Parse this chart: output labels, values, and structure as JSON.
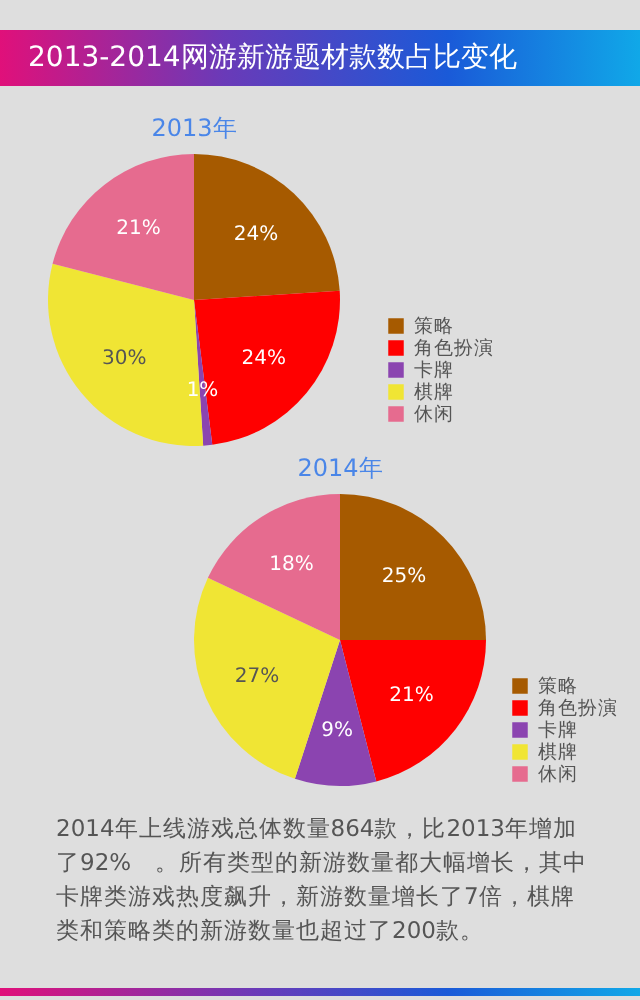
{
  "chart_data": [
    {
      "type": "pie",
      "title": "2013-2014网游新游题材款数占比变化",
      "subtitle": "2013年",
      "categories": [
        "策略",
        "角色扮演",
        "卡牌",
        "棋牌",
        "休闲"
      ],
      "values": [
        24,
        24,
        1,
        30,
        21
      ],
      "value_labels": [
        "24%",
        "24%",
        "1%",
        "30%",
        "21%"
      ],
      "colors": [
        "#a65a00",
        "#ff0000",
        "#8b44b0",
        "#f0e534",
        "#e66b8f"
      ],
      "legend": "right"
    },
    {
      "type": "pie",
      "title": "2014年",
      "categories": [
        "策略",
        "角色扮演",
        "卡牌",
        "棋牌",
        "休闲"
      ],
      "values": [
        25,
        21,
        9,
        27,
        18
      ],
      "value_labels": [
        "25%",
        "21%",
        "9%",
        "27%",
        "18%"
      ],
      "colors": [
        "#a65a00",
        "#ff0000",
        "#8b44b0",
        "#f0e534",
        "#e66b8f"
      ],
      "legend": "right",
      "annotations": [
        "2014年上线游戏总体数量864款，比2013年增加了92%　。所有类型的新游数量都大幅增长，其中卡牌类游戏热度飙升，新游数量增长了7倍，棋牌类和策略类的新游数量也超过了200款。"
      ]
    }
  ]
}
